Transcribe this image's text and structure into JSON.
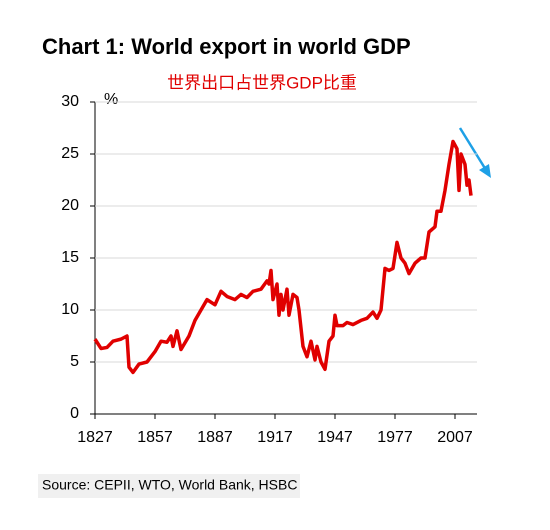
{
  "chart_data": {
    "type": "line",
    "title": "Chart 1: World export in world GDP",
    "subtitle": "世界出口占世界GDP比重",
    "ylabel": "%",
    "source": "Source: CEPII, WTO, World Bank, HSBC",
    "x": [
      1827,
      1830,
      1833,
      1836,
      1840,
      1843,
      1844,
      1846,
      1849,
      1853,
      1857,
      1860,
      1863,
      1865,
      1866,
      1868,
      1870,
      1874,
      1877,
      1880,
      1883,
      1887,
      1890,
      1893,
      1897,
      1900,
      1903,
      1906,
      1910,
      1913,
      1914,
      1915,
      1916,
      1918,
      1919,
      1920,
      1921,
      1923,
      1924,
      1926,
      1928,
      1929,
      1931,
      1933,
      1935,
      1937,
      1938,
      1940,
      1942,
      1944,
      1946,
      1947,
      1948,
      1951,
      1953,
      1956,
      1960,
      1963,
      1966,
      1968,
      1970,
      1972,
      1974,
      1976,
      1978,
      1980,
      1982,
      1984,
      1987,
      1990,
      1992,
      1994,
      1997,
      1998,
      2000,
      2002,
      2004,
      2006,
      2008,
      2009,
      2010,
      2012,
      2013,
      2014,
      2015
    ],
    "series": [
      {
        "name": "World export in world GDP",
        "color": "#e00000",
        "values": [
          7.2,
          6.3,
          6.4,
          7.0,
          7.2,
          7.5,
          4.5,
          4.0,
          4.8,
          5.0,
          6.0,
          7.0,
          6.9,
          7.5,
          6.5,
          8.0,
          6.2,
          7.5,
          9.0,
          10.0,
          11.0,
          10.5,
          11.8,
          11.3,
          11.0,
          11.5,
          11.2,
          11.8,
          12.0,
          12.8,
          12.5,
          13.8,
          11.0,
          12.5,
          9.5,
          11.5,
          10.0,
          12.0,
          9.5,
          11.5,
          11.2,
          10.0,
          6.5,
          5.5,
          7.0,
          5.2,
          6.5,
          5.0,
          4.3,
          7.0,
          7.5,
          9.5,
          8.5,
          8.5,
          8.8,
          8.6,
          9.0,
          9.2,
          9.8,
          9.2,
          10.0,
          14.0,
          13.8,
          14.0,
          16.5,
          15.0,
          14.5,
          13.5,
          14.5,
          15.0,
          15.0,
          17.5,
          18.0,
          19.5,
          19.5,
          21.5,
          24.0,
          26.2,
          25.5,
          21.5,
          25.0,
          24.0,
          22.0,
          22.5,
          21.0
        ]
      }
    ],
    "xlim": [
      1827,
      2018
    ],
    "xticks": [
      1827,
      1857,
      1887,
      1917,
      1947,
      1977,
      2007
    ],
    "ylim": [
      0,
      30
    ],
    "yticks": [
      0,
      5,
      10,
      15,
      20,
      25,
      30
    ],
    "grid": true
  }
}
